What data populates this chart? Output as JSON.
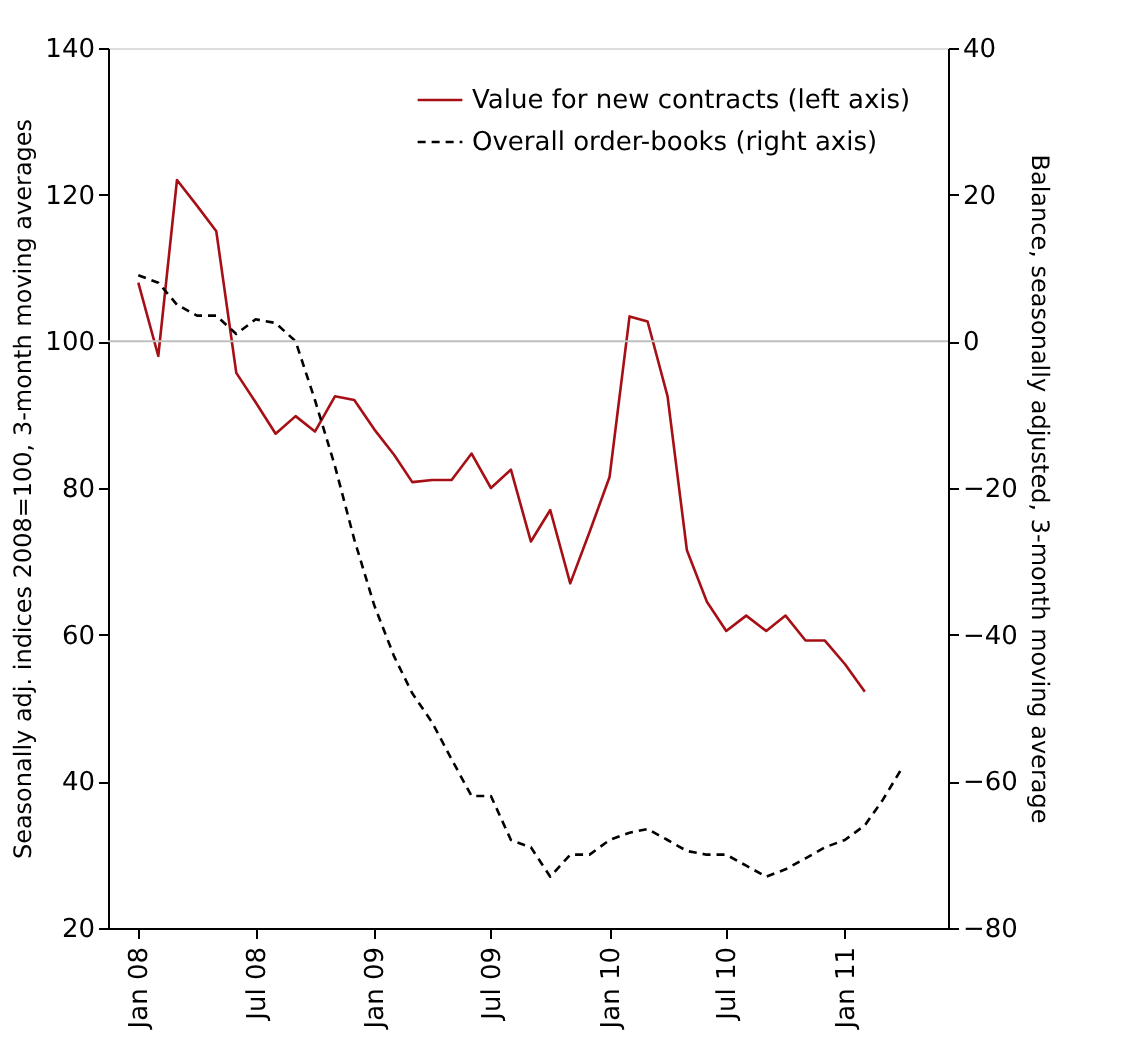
{
  "chart_data": {
    "type": "line",
    "ylabel": "Seasonally adj. indices 2008=100, 3-month moving averages",
    "y2label": "Balance, seasonally adjusted, 3-month moving average",
    "x": [
      "2008-01",
      "2008-02",
      "2008-03",
      "2008-04",
      "2008-05",
      "2008-06",
      "2008-07",
      "2008-08",
      "2008-09",
      "2008-10",
      "2008-11",
      "2008-12",
      "2009-01",
      "2009-02",
      "2009-03",
      "2009-04",
      "2009-05",
      "2009-06",
      "2009-07",
      "2009-08",
      "2009-09",
      "2009-10",
      "2009-11",
      "2009-12",
      "2010-01",
      "2010-02",
      "2010-03",
      "2010-04",
      "2010-05",
      "2010-06",
      "2010-07",
      "2010-08",
      "2010-09",
      "2010-10",
      "2010-11",
      "2010-12",
      "2011-01",
      "2011-02",
      "2011-03",
      "2011-04"
    ],
    "series": [
      {
        "name": "Value for new contracts  (left axis)",
        "color": "#a50f15",
        "line_style": "solid",
        "values": [
          108,
          98,
          122,
          118.5,
          115,
          95.7,
          91.7,
          87.4,
          89.8,
          87.7,
          92.5,
          92,
          88,
          84.5,
          80.8,
          81.1,
          81.1,
          84.7,
          80,
          82.5,
          72.7,
          77,
          67,
          74,
          81.5,
          103.4,
          102.7,
          92.5,
          71.5,
          64.5,
          60.5,
          62.6,
          60.5,
          62.6,
          59.2,
          59.2,
          56,
          52.2,
          null,
          null
        ]
      },
      {
        "name": "Overall order-books  (right axis)",
        "color": "#000000",
        "line_style": "dashed",
        "axis": "y2",
        "values": [
          9,
          8,
          5,
          3.5,
          3.5,
          1,
          3,
          2.5,
          0,
          -8,
          -17,
          -27,
          -36,
          -43,
          -48,
          -52,
          -57,
          -62,
          -62,
          -68,
          -69,
          -73,
          -70,
          -70,
          -68,
          -67,
          -66.5,
          -68,
          -69.5,
          -70,
          -70,
          -71.5,
          -73,
          -72,
          -70.5,
          -69,
          -68,
          -66,
          -62.5,
          -58
        ]
      }
    ],
    "xlim": [
      "2007-11-15",
      "2011-06-10"
    ],
    "xticks": [
      {
        "value": "2008-01",
        "label": "Jan 08"
      },
      {
        "value": "2008-07",
        "label": "Jul 08"
      },
      {
        "value": "2009-01",
        "label": "Jan 09"
      },
      {
        "value": "2009-07",
        "label": "Jul 09"
      },
      {
        "value": "2010-01",
        "label": "Jan 10"
      },
      {
        "value": "2010-07",
        "label": "Jul 10"
      },
      {
        "value": "2011-01",
        "label": "Jan 11"
      }
    ],
    "ylim": [
      20,
      140
    ],
    "yticks": [
      20,
      40,
      60,
      80,
      100,
      120,
      140
    ],
    "y2lim": [
      -80,
      40
    ],
    "y2ticks": [
      -80,
      -60,
      -40,
      -20,
      0,
      20,
      40
    ],
    "ref_lines": [
      {
        "axis": "y2",
        "value": 0,
        "color": "#bfbfbf"
      }
    ],
    "grid": false,
    "legend": "top right",
    "marker": "none"
  }
}
